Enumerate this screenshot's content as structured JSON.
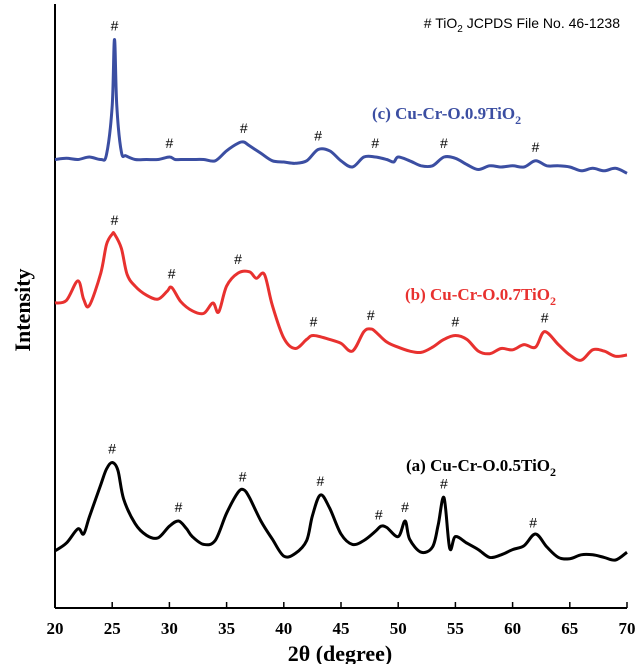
{
  "chart_data": {
    "type": "line",
    "xlabel": "2θ (degree)",
    "ylabel": "Intensity",
    "xlim": [
      20,
      70
    ],
    "xticks": [
      "20",
      "25",
      "30",
      "35",
      "40",
      "45",
      "50",
      "55",
      "60",
      "65",
      "70"
    ],
    "annotation_note": {
      "marker": "#",
      "main": "TiO",
      "sub": "2",
      "rest": " JCPDS File No. 46-1238"
    },
    "series": [
      {
        "id": "a",
        "label_main": "(a) Cu-Cr-O.0.5TiO",
        "label_sub": "2",
        "color": "#000000",
        "peaks": [
          25.0,
          30.8,
          36.4,
          43.2,
          48.3,
          50.6,
          54.0,
          61.8
        ],
        "x": [
          20,
          21,
          22,
          22.5,
          23,
          24,
          24.5,
          25,
          25.5,
          26,
          27,
          28,
          29,
          30,
          30.8,
          31.5,
          32,
          33,
          34,
          35,
          36,
          36.5,
          37,
          38,
          39,
          40,
          41,
          42,
          42.5,
          43.2,
          44,
          45,
          46,
          47,
          48,
          48.5,
          49,
          50,
          50.6,
          51,
          52,
          53,
          53.5,
          54,
          54.5,
          55,
          56,
          57,
          58,
          59,
          60,
          61,
          62,
          63,
          64,
          65,
          66,
          67,
          68,
          69,
          70
        ],
        "y": [
          0.07,
          0.13,
          0.24,
          0.2,
          0.33,
          0.58,
          0.7,
          0.75,
          0.69,
          0.47,
          0.28,
          0.19,
          0.17,
          0.26,
          0.3,
          0.24,
          0.18,
          0.12,
          0.15,
          0.36,
          0.52,
          0.54,
          0.48,
          0.3,
          0.16,
          0.03,
          0.05,
          0.15,
          0.34,
          0.5,
          0.4,
          0.2,
          0.12,
          0.15,
          0.22,
          0.26,
          0.25,
          0.18,
          0.3,
          0.16,
          0.06,
          0.1,
          0.27,
          0.48,
          0.09,
          0.18,
          0.13,
          0.08,
          0.02,
          0.04,
          0.08,
          0.11,
          0.2,
          0.1,
          0.02,
          0.01,
          0.04,
          0.04,
          0.02,
          0.0,
          0.06
        ]
      },
      {
        "id": "b",
        "label_main": "(b) Cu-Cr-O.0.7TiO",
        "label_sub": "2",
        "color": "#e8312f",
        "peaks": [
          25.2,
          30.2,
          36.0,
          42.6,
          47.6,
          55.0,
          62.8
        ],
        "x": [
          20,
          21,
          22,
          22.5,
          23,
          24,
          24.5,
          25,
          25.2,
          25.8,
          26.3,
          27,
          28,
          29,
          29.8,
          30.2,
          31,
          32,
          33,
          33.8,
          34.3,
          35,
          36,
          37,
          37.6,
          38.3,
          39,
          40,
          41,
          42,
          42.6,
          44,
          45,
          46,
          47,
          47.6,
          48,
          49,
          50,
          51,
          52,
          53,
          54,
          55,
          56,
          57,
          58,
          59,
          60,
          61,
          62,
          62.8,
          64,
          65,
          66,
          67,
          68,
          69,
          70
        ],
        "y": [
          0.4,
          0.42,
          0.57,
          0.43,
          0.38,
          0.63,
          0.85,
          0.93,
          0.93,
          0.82,
          0.62,
          0.53,
          0.46,
          0.43,
          0.49,
          0.52,
          0.41,
          0.34,
          0.32,
          0.4,
          0.33,
          0.53,
          0.63,
          0.64,
          0.59,
          0.62,
          0.38,
          0.13,
          0.05,
          0.12,
          0.15,
          0.12,
          0.09,
          0.03,
          0.18,
          0.2,
          0.18,
          0.1,
          0.06,
          0.03,
          0.02,
          0.06,
          0.12,
          0.15,
          0.12,
          0.03,
          0.01,
          0.05,
          0.04,
          0.08,
          0.06,
          0.18,
          0.08,
          0.0,
          -0.04,
          0.04,
          0.03,
          -0.01,
          0.0
        ]
      },
      {
        "id": "c",
        "label_main": "(c) Cu-Cr-O.0.9TiO",
        "label_sub": "2",
        "color": "#3b4ea2",
        "peaks": [
          25.2,
          30.0,
          36.5,
          43.0,
          48.0,
          54.0,
          62.0
        ],
        "x": [
          20,
          21,
          22,
          23,
          24,
          24.5,
          25,
          25.2,
          25.4,
          25.8,
          26.2,
          27,
          28,
          29,
          30,
          30.5,
          31,
          32,
          33,
          34,
          35,
          36,
          36.5,
          37,
          38,
          39,
          40,
          41,
          42,
          43,
          44,
          45,
          46,
          47,
          48,
          49,
          49.6,
          50,
          51,
          52,
          53,
          54,
          55,
          56,
          57,
          58,
          59,
          60,
          61,
          62,
          63,
          64,
          65,
          66,
          67,
          68,
          69,
          70
        ],
        "y": [
          0.02,
          0.03,
          0.02,
          0.04,
          0.02,
          0.06,
          0.45,
          0.98,
          0.45,
          0.08,
          0.05,
          0.02,
          0.02,
          0.02,
          0.04,
          0.02,
          0.02,
          0.02,
          0.02,
          0.01,
          0.09,
          0.15,
          0.16,
          0.13,
          0.07,
          0.01,
          0.0,
          -0.01,
          0.01,
          0.1,
          0.09,
          0.01,
          -0.04,
          0.04,
          0.04,
          0.02,
          0.0,
          0.04,
          0.01,
          -0.03,
          -0.03,
          0.04,
          0.03,
          -0.02,
          -0.06,
          -0.03,
          -0.04,
          -0.03,
          -0.04,
          0.01,
          -0.03,
          -0.03,
          -0.04,
          -0.07,
          -0.05,
          -0.07,
          -0.05,
          -0.09
        ]
      }
    ]
  }
}
